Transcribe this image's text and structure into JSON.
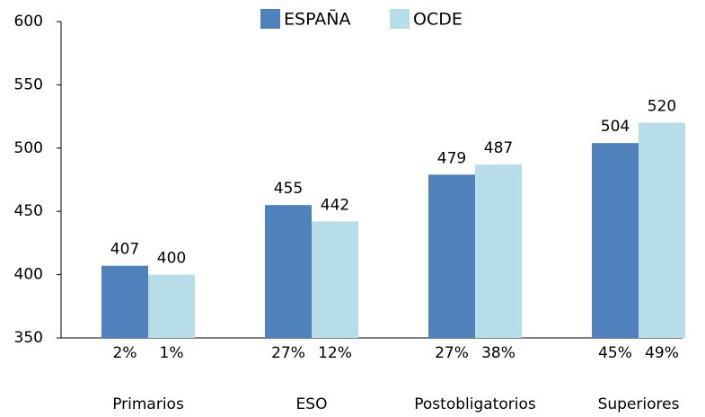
{
  "chart_data": {
    "type": "bar",
    "categories": [
      "Primarios",
      "ESO",
      "Postobligatorios",
      "Superiores"
    ],
    "series": [
      {
        "name": "ESPAÑA",
        "color": "#4f81bd",
        "values": [
          407,
          455,
          479,
          504
        ],
        "percentage_labels": [
          "2%",
          "27%",
          "27%",
          "45%"
        ]
      },
      {
        "name": "OCDE",
        "color": "#b7dde8",
        "values": [
          400,
          442,
          487,
          520
        ],
        "percentage_labels": [
          "1%",
          "12%",
          "38%",
          "49%"
        ]
      }
    ],
    "ylim": [
      350,
      600
    ],
    "yticks": [
      350,
      400,
      450,
      500,
      550,
      600
    ],
    "grid": false,
    "legend": "top"
  }
}
